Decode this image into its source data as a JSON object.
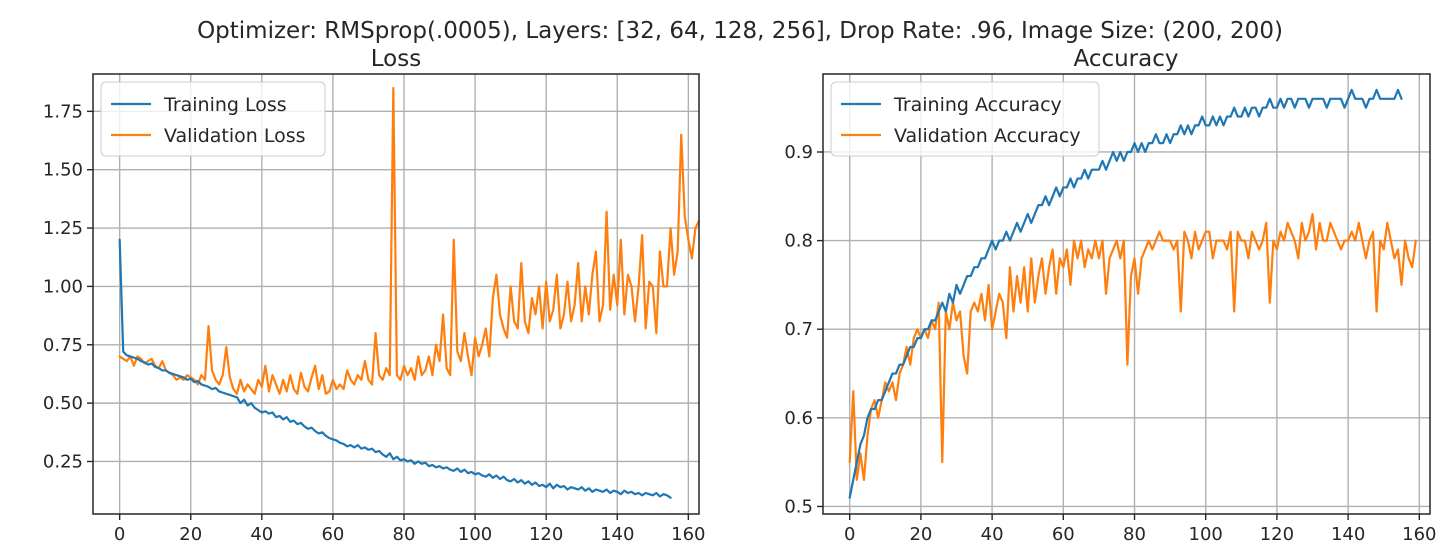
{
  "figure": {
    "suptitle": "Optimizer: RMSprop(.0005), Layers: [32, 64, 128, 256], Drop Rate: .96, Image Size: (200, 200)"
  },
  "colors": {
    "training": "#1f77b4",
    "validation": "#ff7f0e"
  },
  "chart_data": [
    {
      "type": "line",
      "title": "Loss",
      "xlabel": "",
      "ylabel": "",
      "xlim": [
        -7.5,
        163
      ],
      "ylim": [
        0.025,
        1.91
      ],
      "xticks": [
        0,
        20,
        40,
        60,
        80,
        100,
        120,
        140,
        160
      ],
      "yticks": [
        0.25,
        0.5,
        0.75,
        1.0,
        1.25,
        1.5,
        1.75
      ],
      "ytick_labels": [
        "0.25",
        "0.50",
        "0.75",
        "1.00",
        "1.25",
        "1.50",
        "1.75"
      ],
      "grid": true,
      "legend": "upper left",
      "x_start": 0,
      "series": [
        {
          "name": "Training Loss",
          "color": "#1f77b4",
          "values": [
            1.2,
            0.72,
            0.705,
            0.7,
            0.695,
            0.69,
            0.68,
            0.675,
            0.665,
            0.67,
            0.655,
            0.65,
            0.64,
            0.64,
            0.63,
            0.625,
            0.62,
            0.615,
            0.61,
            0.6,
            0.605,
            0.59,
            0.595,
            0.58,
            0.575,
            0.57,
            0.56,
            0.565,
            0.55,
            0.545,
            0.54,
            0.535,
            0.53,
            0.525,
            0.5,
            0.515,
            0.49,
            0.5,
            0.48,
            0.47,
            0.46,
            0.465,
            0.455,
            0.46,
            0.44,
            0.445,
            0.43,
            0.44,
            0.42,
            0.425,
            0.41,
            0.415,
            0.4,
            0.39,
            0.395,
            0.38,
            0.37,
            0.375,
            0.36,
            0.35,
            0.345,
            0.34,
            0.33,
            0.325,
            0.315,
            0.32,
            0.31,
            0.32,
            0.305,
            0.31,
            0.3,
            0.305,
            0.29,
            0.295,
            0.28,
            0.27,
            0.285,
            0.26,
            0.27,
            0.255,
            0.26,
            0.25,
            0.255,
            0.24,
            0.25,
            0.24,
            0.245,
            0.23,
            0.235,
            0.225,
            0.23,
            0.22,
            0.225,
            0.215,
            0.21,
            0.22,
            0.205,
            0.215,
            0.2,
            0.205,
            0.195,
            0.2,
            0.19,
            0.185,
            0.195,
            0.18,
            0.19,
            0.175,
            0.185,
            0.17,
            0.165,
            0.175,
            0.16,
            0.17,
            0.155,
            0.165,
            0.15,
            0.16,
            0.145,
            0.15,
            0.14,
            0.155,
            0.135,
            0.15,
            0.14,
            0.145,
            0.13,
            0.14,
            0.135,
            0.13,
            0.14,
            0.125,
            0.135,
            0.12,
            0.13,
            0.125,
            0.12,
            0.13,
            0.115,
            0.125,
            0.12,
            0.11,
            0.125,
            0.115,
            0.12,
            0.11,
            0.115,
            0.105,
            0.115,
            0.11,
            0.105,
            0.115,
            0.1,
            0.11,
            0.105,
            0.095
          ]
        },
        {
          "name": "Validation Loss",
          "color": "#ff7f0e",
          "values": [
            0.7,
            0.69,
            0.68,
            0.7,
            0.66,
            0.7,
            0.69,
            0.67,
            0.68,
            0.69,
            0.66,
            0.65,
            0.68,
            0.64,
            0.63,
            0.62,
            0.6,
            0.61,
            0.6,
            0.62,
            0.61,
            0.6,
            0.58,
            0.62,
            0.6,
            0.83,
            0.64,
            0.6,
            0.58,
            0.62,
            0.74,
            0.61,
            0.56,
            0.54,
            0.6,
            0.55,
            0.58,
            0.56,
            0.54,
            0.6,
            0.57,
            0.66,
            0.55,
            0.62,
            0.58,
            0.54,
            0.6,
            0.55,
            0.62,
            0.56,
            0.54,
            0.63,
            0.57,
            0.55,
            0.61,
            0.66,
            0.56,
            0.62,
            0.54,
            0.55,
            0.6,
            0.56,
            0.58,
            0.56,
            0.64,
            0.6,
            0.58,
            0.62,
            0.6,
            0.68,
            0.6,
            0.58,
            0.8,
            0.62,
            0.6,
            0.65,
            0.62,
            1.85,
            0.62,
            0.6,
            0.66,
            0.62,
            0.65,
            0.6,
            0.7,
            0.62,
            0.64,
            0.7,
            0.62,
            0.75,
            0.68,
            0.88,
            0.65,
            0.62,
            1.2,
            0.72,
            0.68,
            0.8,
            0.7,
            0.62,
            0.78,
            0.7,
            0.75,
            0.82,
            0.7,
            0.95,
            1.05,
            0.88,
            0.82,
            0.78,
            1.0,
            0.85,
            0.82,
            1.1,
            0.85,
            0.8,
            0.95,
            0.88,
            1.0,
            0.82,
            1.02,
            0.85,
            0.9,
            1.05,
            0.82,
            0.88,
            1.02,
            0.85,
            0.92,
            1.1,
            0.85,
            1.0,
            0.88,
            1.05,
            1.15,
            0.85,
            0.92,
            1.32,
            0.9,
            1.05,
            0.92,
            1.2,
            0.88,
            1.05,
            1.0,
            0.85,
            1.0,
            1.22,
            0.82,
            1.02,
            1.0,
            0.8,
            1.15,
            1.0,
            1.0,
            1.25,
            1.05,
            1.15,
            1.65,
            1.3,
            1.2,
            1.12,
            1.25,
            1.28
          ]
        }
      ]
    },
    {
      "type": "line",
      "title": "Accuracy",
      "xlabel": "",
      "ylabel": "",
      "xlim": [
        -7.5,
        163
      ],
      "ylim": [
        0.4915,
        0.988
      ],
      "xticks": [
        0,
        20,
        40,
        60,
        80,
        100,
        120,
        140,
        160
      ],
      "yticks": [
        0.5,
        0.6,
        0.7,
        0.8,
        0.9
      ],
      "ytick_labels": [
        "0.5",
        "0.6",
        "0.7",
        "0.8",
        "0.9"
      ],
      "grid": true,
      "legend": "upper left",
      "x_start": 0,
      "series": [
        {
          "name": "Training Accuracy",
          "color": "#1f77b4",
          "values": [
            0.51,
            0.53,
            0.55,
            0.57,
            0.58,
            0.6,
            0.61,
            0.61,
            0.62,
            0.62,
            0.63,
            0.64,
            0.65,
            0.65,
            0.66,
            0.66,
            0.67,
            0.68,
            0.68,
            0.69,
            0.69,
            0.7,
            0.7,
            0.71,
            0.71,
            0.72,
            0.73,
            0.72,
            0.74,
            0.73,
            0.75,
            0.74,
            0.75,
            0.76,
            0.76,
            0.77,
            0.77,
            0.78,
            0.78,
            0.79,
            0.8,
            0.79,
            0.8,
            0.8,
            0.81,
            0.8,
            0.81,
            0.82,
            0.81,
            0.82,
            0.83,
            0.82,
            0.83,
            0.84,
            0.84,
            0.85,
            0.84,
            0.85,
            0.86,
            0.85,
            0.86,
            0.86,
            0.87,
            0.86,
            0.87,
            0.87,
            0.88,
            0.87,
            0.88,
            0.88,
            0.88,
            0.89,
            0.88,
            0.89,
            0.9,
            0.89,
            0.9,
            0.89,
            0.9,
            0.9,
            0.91,
            0.9,
            0.91,
            0.9,
            0.91,
            0.91,
            0.92,
            0.91,
            0.91,
            0.92,
            0.91,
            0.92,
            0.92,
            0.93,
            0.92,
            0.93,
            0.92,
            0.93,
            0.93,
            0.94,
            0.93,
            0.93,
            0.94,
            0.93,
            0.94,
            0.93,
            0.94,
            0.94,
            0.95,
            0.94,
            0.94,
            0.95,
            0.94,
            0.95,
            0.95,
            0.94,
            0.95,
            0.95,
            0.96,
            0.95,
            0.95,
            0.96,
            0.95,
            0.96,
            0.96,
            0.95,
            0.96,
            0.96,
            0.96,
            0.95,
            0.96,
            0.96,
            0.96,
            0.96,
            0.95,
            0.96,
            0.96,
            0.96,
            0.96,
            0.95,
            0.96,
            0.97,
            0.96,
            0.96,
            0.96,
            0.95,
            0.96,
            0.96,
            0.97,
            0.96,
            0.96,
            0.96,
            0.96,
            0.96,
            0.97,
            0.96
          ]
        },
        {
          "name": "Validation Accuracy",
          "color": "#ff7f0e",
          "values": [
            0.55,
            0.63,
            0.53,
            0.56,
            0.53,
            0.58,
            0.61,
            0.62,
            0.6,
            0.62,
            0.64,
            0.63,
            0.64,
            0.62,
            0.65,
            0.66,
            0.68,
            0.66,
            0.69,
            0.7,
            0.69,
            0.7,
            0.69,
            0.71,
            0.7,
            0.73,
            0.55,
            0.72,
            0.7,
            0.73,
            0.71,
            0.72,
            0.67,
            0.65,
            0.72,
            0.73,
            0.72,
            0.74,
            0.71,
            0.75,
            0.7,
            0.72,
            0.74,
            0.73,
            0.69,
            0.77,
            0.72,
            0.76,
            0.73,
            0.77,
            0.72,
            0.78,
            0.73,
            0.76,
            0.78,
            0.74,
            0.77,
            0.79,
            0.74,
            0.78,
            0.77,
            0.79,
            0.75,
            0.8,
            0.78,
            0.8,
            0.77,
            0.79,
            0.78,
            0.8,
            0.78,
            0.8,
            0.74,
            0.78,
            0.79,
            0.8,
            0.78,
            0.8,
            0.66,
            0.76,
            0.78,
            0.74,
            0.78,
            0.79,
            0.8,
            0.79,
            0.8,
            0.81,
            0.8,
            0.8,
            0.8,
            0.79,
            0.8,
            0.72,
            0.81,
            0.8,
            0.78,
            0.81,
            0.79,
            0.8,
            0.81,
            0.81,
            0.78,
            0.8,
            0.8,
            0.8,
            0.79,
            0.81,
            0.72,
            0.81,
            0.8,
            0.8,
            0.78,
            0.81,
            0.8,
            0.79,
            0.8,
            0.82,
            0.73,
            0.8,
            0.79,
            0.81,
            0.8,
            0.82,
            0.81,
            0.8,
            0.78,
            0.82,
            0.8,
            0.81,
            0.83,
            0.79,
            0.82,
            0.8,
            0.8,
            0.82,
            0.81,
            0.8,
            0.79,
            0.8,
            0.8,
            0.81,
            0.8,
            0.82,
            0.8,
            0.78,
            0.8,
            0.81,
            0.72,
            0.8,
            0.79,
            0.82,
            0.8,
            0.78,
            0.79,
            0.75,
            0.8,
            0.78,
            0.77,
            0.8
          ]
        }
      ]
    }
  ]
}
